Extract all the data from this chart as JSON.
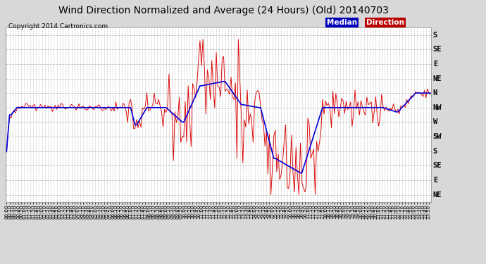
{
  "title": "Wind Direction Normalized and Average (24 Hours) (Old) 20140703",
  "copyright": "Copyright 2014 Cartronics.com",
  "bg_color": "#d8d8d8",
  "plot_bg": "#ffffff",
  "grid_color": "#bbbbbb",
  "median_color": "#0000dd",
  "direction_color": "#dd0000",
  "median_label": "Median",
  "direction_label": "Direction",
  "median_label_bg": "#0000bb",
  "direction_label_bg": "#bb0000",
  "y_labels_top_to_bottom": [
    "S",
    "SE",
    "E",
    "NE",
    "N",
    "NW",
    "W",
    "SW",
    "S",
    "SE",
    "E",
    "NE"
  ],
  "n_points": 288,
  "title_fontsize": 10,
  "copyright_fontsize": 6.5,
  "xtick_fontsize": 5.0,
  "ytick_fontsize": 7.5
}
